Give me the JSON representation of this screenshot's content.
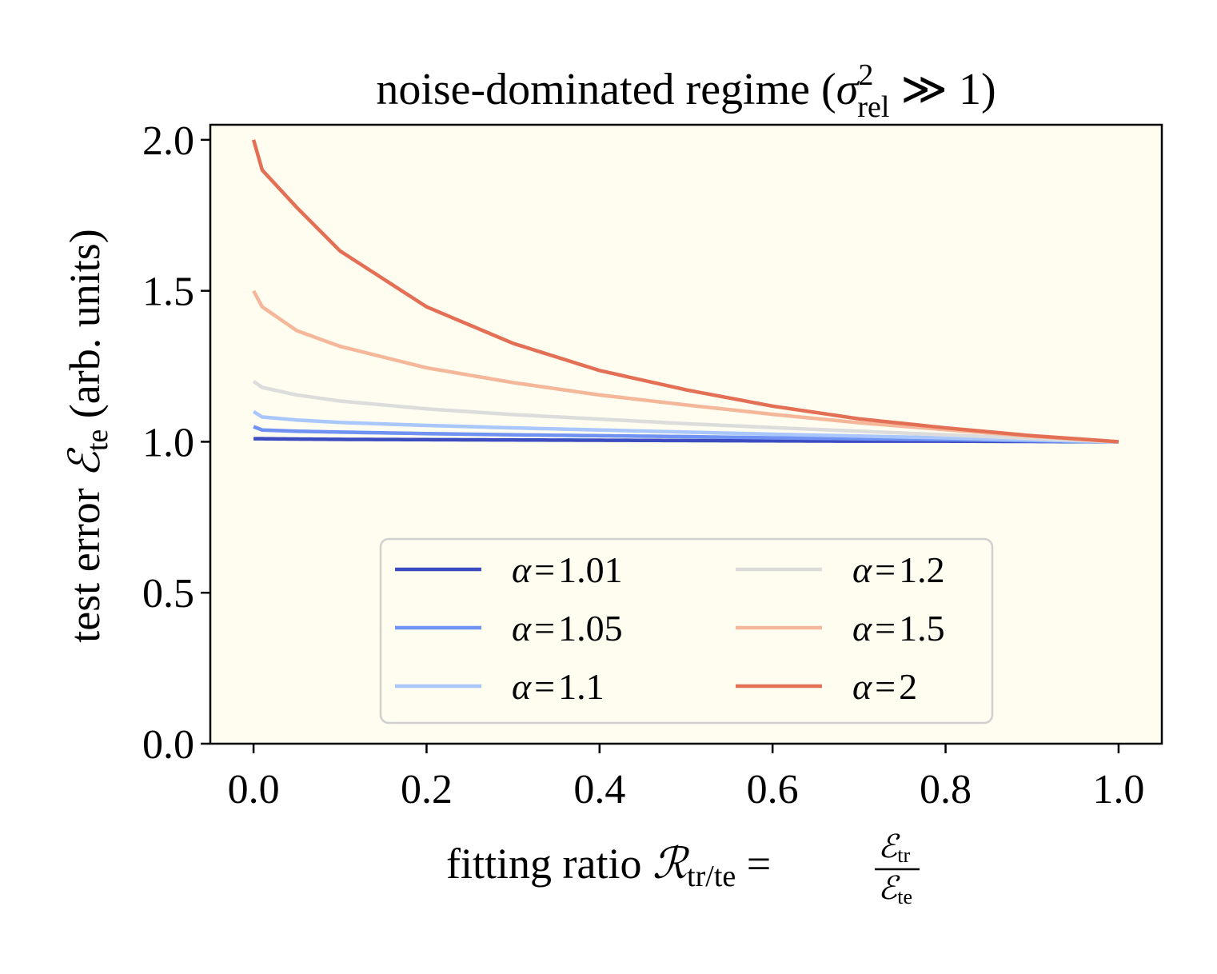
{
  "chart_data": {
    "type": "line",
    "title": "noise-dominated regime (σ²rel ≫ 1)",
    "title_parts": {
      "main": "noise-dominated regime (",
      "sigma": "σ",
      "sup": "2",
      "sub": "rel",
      "rest": " ≫ 1)"
    },
    "xlabel": "fitting ratio ℛtr/te = ℰtr/ℰte",
    "xlabel_parts": {
      "main": "fitting ratio ",
      "R": "ℛ",
      "R_sub": "tr/te",
      "eq": " = ",
      "num": "ℰ",
      "num_sub": "tr",
      "den": "ℰ",
      "den_sub": "te"
    },
    "ylabel": "test error ℰte (arb. units)",
    "ylabel_parts": {
      "main": "test error ",
      "E": "ℰ",
      "E_sub": "te",
      "rest": " (arb. units)"
    },
    "xlim": [
      -0.05,
      1.05
    ],
    "ylim": [
      0.0,
      2.05
    ],
    "xticks": [
      "0.0",
      "0.2",
      "0.4",
      "0.6",
      "0.8",
      "1.0"
    ],
    "yticks": [
      "0.0",
      "0.5",
      "1.0",
      "1.5",
      "2.0"
    ],
    "grid": false,
    "background": "#fffcf0",
    "legend_position": "lower-center",
    "legend_columns": 2,
    "series": [
      {
        "name": "α = 1.01",
        "label_alpha": "α",
        "label_value": "1.01",
        "alpha": 1.01,
        "color": "#3b4cc0",
        "x": [
          0.0,
          0.01,
          0.05,
          0.1,
          0.2,
          0.3,
          0.4,
          0.5,
          0.6,
          0.7,
          0.8,
          0.9,
          1.0
        ],
        "y": [
          1.01,
          1.01,
          1.009,
          1.008,
          1.007,
          1.006,
          1.005,
          1.004,
          1.003,
          1.002,
          1.002,
          1.001,
          1.0
        ]
      },
      {
        "name": "α = 1.05",
        "label_alpha": "α",
        "label_value": "1.05",
        "alpha": 1.05,
        "color": "#6f92f3",
        "x": [
          0.0,
          0.01,
          0.05,
          0.1,
          0.2,
          0.3,
          0.4,
          0.5,
          0.6,
          0.7,
          0.8,
          0.9,
          1.0
        ],
        "y": [
          1.05,
          1.039,
          1.035,
          1.032,
          1.027,
          1.023,
          1.02,
          1.017,
          1.013,
          1.01,
          1.007,
          1.003,
          1.0
        ]
      },
      {
        "name": "α = 1.1",
        "label_alpha": "α",
        "label_value": "1.1",
        "alpha": 1.1,
        "color": "#aac7fd",
        "x": [
          0.0,
          0.01,
          0.05,
          0.1,
          0.2,
          0.3,
          0.4,
          0.5,
          0.6,
          0.7,
          0.8,
          0.9,
          1.0
        ],
        "y": [
          1.1,
          1.082,
          1.072,
          1.064,
          1.054,
          1.046,
          1.039,
          1.032,
          1.025,
          1.019,
          1.013,
          1.006,
          1.0
        ]
      },
      {
        "name": "α = 1.2",
        "label_alpha": "α",
        "label_value": "1.2",
        "alpha": 1.2,
        "color": "#dddcdc",
        "x": [
          0.0,
          0.01,
          0.05,
          0.1,
          0.2,
          0.3,
          0.4,
          0.5,
          0.6,
          0.7,
          0.8,
          0.9,
          1.0
        ],
        "y": [
          1.2,
          1.18,
          1.155,
          1.135,
          1.109,
          1.09,
          1.075,
          1.06,
          1.047,
          1.035,
          1.023,
          1.011,
          1.0
        ]
      },
      {
        "name": "α = 1.5",
        "label_alpha": "α",
        "label_value": "1.5",
        "alpha": 1.5,
        "color": "#f5b79a",
        "x": [
          0.0,
          0.01,
          0.05,
          0.1,
          0.2,
          0.3,
          0.4,
          0.5,
          0.6,
          0.7,
          0.8,
          0.9,
          1.0
        ],
        "y": [
          1.5,
          1.447,
          1.368,
          1.316,
          1.245,
          1.196,
          1.155,
          1.122,
          1.091,
          1.063,
          1.04,
          1.018,
          1.0
        ]
      },
      {
        "name": "α = 2",
        "label_alpha": "α",
        "label_value": "2",
        "alpha": 2,
        "color": "#e36f55",
        "x": [
          0.0,
          0.01,
          0.05,
          0.1,
          0.2,
          0.3,
          0.4,
          0.5,
          0.6,
          0.7,
          0.8,
          0.9,
          1.0
        ],
        "y": [
          2.0,
          1.9,
          1.776,
          1.632,
          1.447,
          1.326,
          1.236,
          1.172,
          1.118,
          1.076,
          1.046,
          1.02,
          1.0
        ]
      }
    ]
  }
}
